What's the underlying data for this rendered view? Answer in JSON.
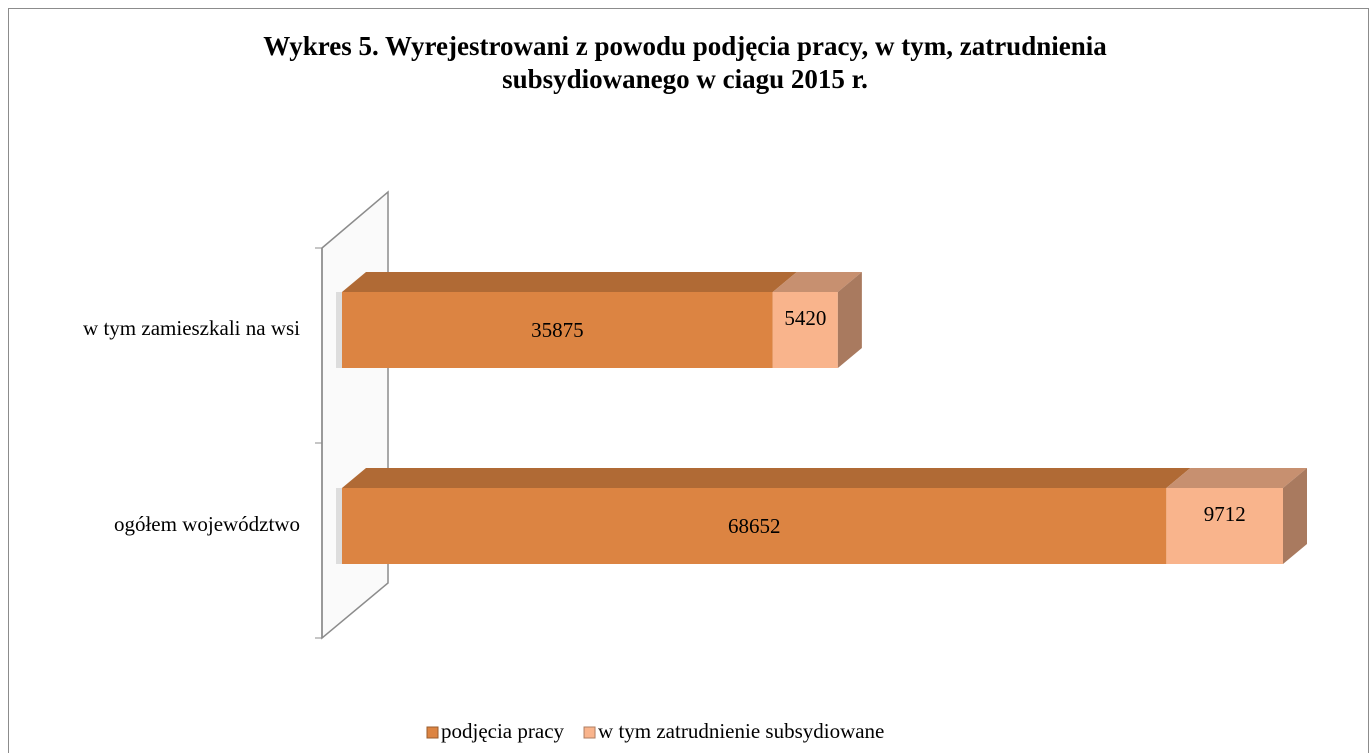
{
  "chart_data": {
    "type": "bar3d_stacked_horizontal",
    "title": "Wykres 5. Wyrejestrowani z powodu podjęcia pracy, w tym, zatrudnienia subsydiowanego w ciagu 2015 r.",
    "categories": [
      "w tym zamieszkali na wsi",
      "ogółem województwo"
    ],
    "series": [
      {
        "name": "podjęcia pracy",
        "color": "#dc8442",
        "values": [
          35875,
          68652
        ]
      },
      {
        "name": "w tym zatrudnienie subsydiowane",
        "color": "#f9b48c",
        "values": [
          5420,
          9712
        ]
      }
    ],
    "legend": "bottom"
  }
}
